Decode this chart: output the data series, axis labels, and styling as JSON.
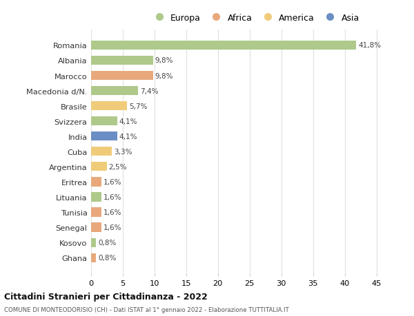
{
  "countries": [
    "Romania",
    "Albania",
    "Marocco",
    "Macedonia d/N.",
    "Brasile",
    "Svizzera",
    "India",
    "Cuba",
    "Argentina",
    "Eritrea",
    "Lituania",
    "Tunisia",
    "Senegal",
    "Kosovo",
    "Ghana"
  ],
  "values": [
    41.8,
    9.8,
    9.8,
    7.4,
    5.7,
    4.1,
    4.1,
    3.3,
    2.5,
    1.6,
    1.6,
    1.6,
    1.6,
    0.8,
    0.8
  ],
  "bar_colors": [
    "#aec98a",
    "#aec98a",
    "#e8a87c",
    "#aec98a",
    "#f0cc7a",
    "#aec98a",
    "#6b8ec4",
    "#f0cc7a",
    "#f0cc7a",
    "#e8a87c",
    "#aec98a",
    "#e8a87c",
    "#e8a87c",
    "#aec98a",
    "#e8a87c"
  ],
  "legend_labels": [
    "Europa",
    "Africa",
    "America",
    "Asia"
  ],
  "legend_colors": [
    "#aec98a",
    "#e8a87c",
    "#f0cc7a",
    "#6b8ec4"
  ],
  "title": "Cittadini Stranieri per Cittadinanza - 2022",
  "subtitle": "COMUNE DI MONTEODORISIO (CH) - Dati ISTAT al 1° gennaio 2022 - Elaborazione TUTTITALIA.IT",
  "xlim": [
    0,
    47
  ],
  "xticks": [
    0,
    5,
    10,
    15,
    20,
    25,
    30,
    35,
    40,
    45
  ],
  "background_color": "#ffffff",
  "grid_color": "#e0e0e0",
  "bar_height": 0.6
}
